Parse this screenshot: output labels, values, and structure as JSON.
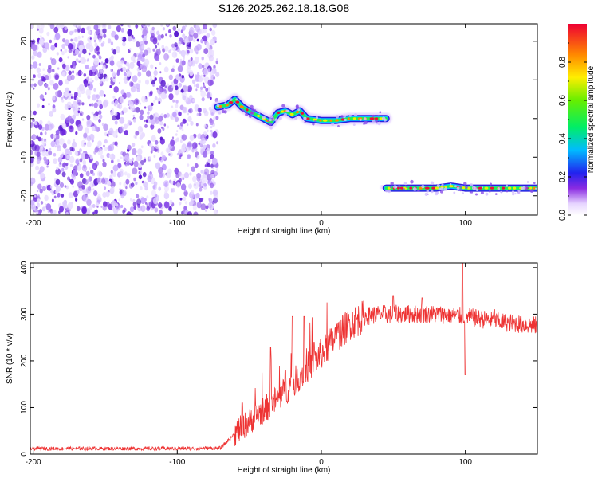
{
  "title": "S126.2025.262.18.18.G08",
  "chart_data": [
    {
      "type": "heatmap",
      "xlabel": "Height of straight line (km)",
      "ylabel": "Frequency (Hz)",
      "xlim": [
        -202,
        150
      ],
      "ylim": [
        -25,
        24.5
      ],
      "x_ticks": [
        -200,
        -100,
        0,
        100
      ],
      "y_ticks": [
        20,
        10,
        0,
        -10,
        -20
      ],
      "grid": false,
      "colorbar": {
        "label": "Normalized spectral amplitude",
        "range": [
          0,
          1
        ],
        "ticks": [
          0.0,
          0.2,
          0.4,
          0.6,
          0.8
        ]
      },
      "regions": [
        {
          "kind": "noise",
          "x_range": [
            -202,
            -72
          ],
          "y_range": [
            -25,
            24.5
          ]
        },
        {
          "kind": "signal",
          "x_range": [
            -72,
            45
          ],
          "frequency_hz": [
            [
              -72,
              3
            ],
            [
              -65,
              3.5
            ],
            [
              -60,
              5
            ],
            [
              -55,
              3
            ],
            [
              -48,
              1.5
            ],
            [
              -40,
              0
            ],
            [
              -35,
              -1
            ],
            [
              -30,
              1.5
            ],
            [
              -25,
              2
            ],
            [
              -20,
              1
            ],
            [
              -15,
              2
            ],
            [
              -10,
              0
            ],
            [
              0,
              -0.5
            ],
            [
              10,
              -0.5
            ],
            [
              20,
              0
            ],
            [
              30,
              0
            ],
            [
              45,
              0
            ]
          ]
        },
        {
          "kind": "signal",
          "x_range": [
            45,
            150
          ],
          "frequency_hz": [
            [
              45,
              -18
            ],
            [
              60,
              -18
            ],
            [
              80,
              -18
            ],
            [
              90,
              -17.5
            ],
            [
              100,
              -18
            ],
            [
              120,
              -18
            ],
            [
              150,
              -18
            ]
          ]
        }
      ]
    },
    {
      "type": "line",
      "xlabel": "Height of straight line (km)",
      "ylabel": "SNR (10 * v/v)",
      "xlim": [
        -202,
        150
      ],
      "ylim": [
        0,
        410
      ],
      "x_ticks": [
        -200,
        -100,
        0,
        100
      ],
      "y_ticks": [
        0,
        100,
        200,
        300,
        400
      ],
      "grid": false,
      "color": "#ee3333",
      "envelope": [
        [
          -202,
          12
        ],
        [
          -150,
          12
        ],
        [
          -100,
          12
        ],
        [
          -70,
          13
        ],
        [
          -58,
          50
        ],
        [
          -50,
          70
        ],
        [
          -40,
          95
        ],
        [
          -30,
          120
        ],
        [
          -20,
          150
        ],
        [
          -10,
          185
        ],
        [
          0,
          215
        ],
        [
          10,
          250
        ],
        [
          20,
          280
        ],
        [
          30,
          295
        ],
        [
          40,
          300
        ],
        [
          60,
          300
        ],
        [
          80,
          300
        ],
        [
          100,
          295
        ],
        [
          120,
          285
        ],
        [
          150,
          275
        ]
      ],
      "spikes": [
        [
          -55,
          110
        ],
        [
          -35,
          230
        ],
        [
          -25,
          180
        ],
        [
          -20,
          295
        ],
        [
          -12,
          295
        ],
        [
          -5,
          240
        ],
        [
          50,
          340
        ],
        [
          70,
          335
        ],
        [
          98,
          412
        ],
        [
          100,
          170
        ],
        [
          120,
          310
        ]
      ]
    }
  ]
}
